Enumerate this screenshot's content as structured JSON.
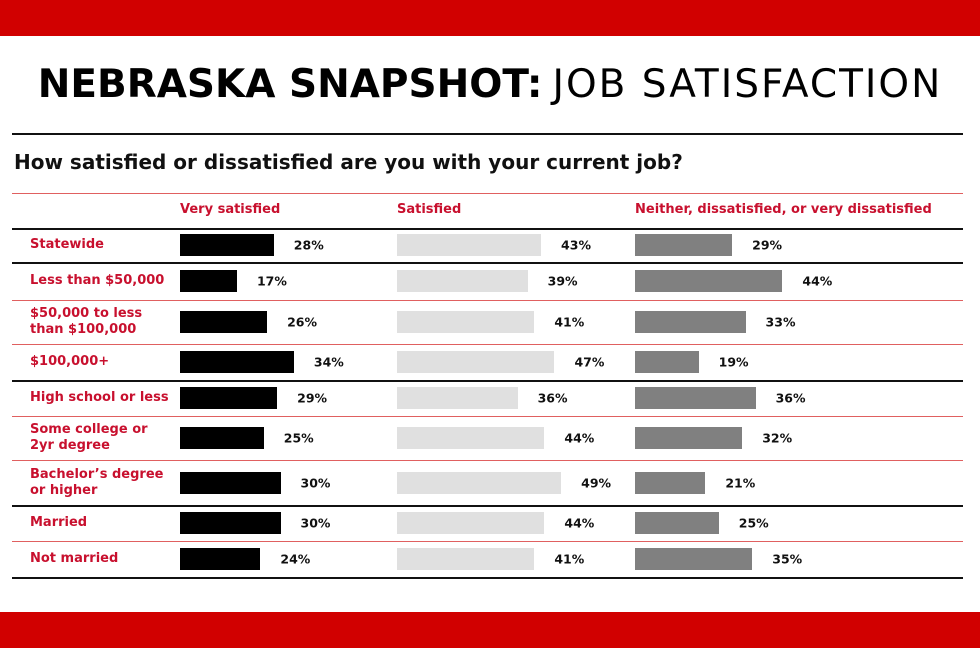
{
  "chart_data": {
    "type": "bar",
    "title": "NEBRASKA SNAPSHOT:",
    "title_suffix": "JOB SATISFACTION",
    "subtitle": "How satisfied or dissatisfied are you with your current job?",
    "categories": [
      "Statewide",
      "Less than $50,000",
      "$50,000 to less than $100,000",
      "$100,000+",
      "High school or less",
      "Some college or 2yr degree",
      "Bachelor’s degree or higher",
      "Married",
      "Not married"
    ],
    "series": [
      {
        "name": "Very satisfied",
        "color": "#000000",
        "values": [
          28,
          17,
          26,
          34,
          29,
          25,
          30,
          30,
          24
        ],
        "value_labels": [
          "28%",
          "17%",
          "26%",
          "34%",
          "29%",
          "25%",
          "30%",
          "30%",
          "24%"
        ]
      },
      {
        "name": "Satisfied",
        "color": "#e0e0e0",
        "values": [
          43,
          39,
          41,
          47,
          36,
          44,
          49,
          44,
          41
        ],
        "value_labels": [
          "43%",
          "39%",
          "41%",
          "47%",
          "36%",
          "44%",
          "49%",
          "44%",
          "41%"
        ]
      },
      {
        "name": "Neither, dissatisfied, or very dissatisfied",
        "color": "#808080",
        "values": [
          29,
          44,
          33,
          19,
          36,
          32,
          21,
          25,
          35
        ],
        "value_labels": [
          "29%",
          "44%",
          "33%",
          "19%",
          "36%",
          "32%",
          "21%",
          "25%",
          "35%"
        ]
      }
    ]
  }
}
